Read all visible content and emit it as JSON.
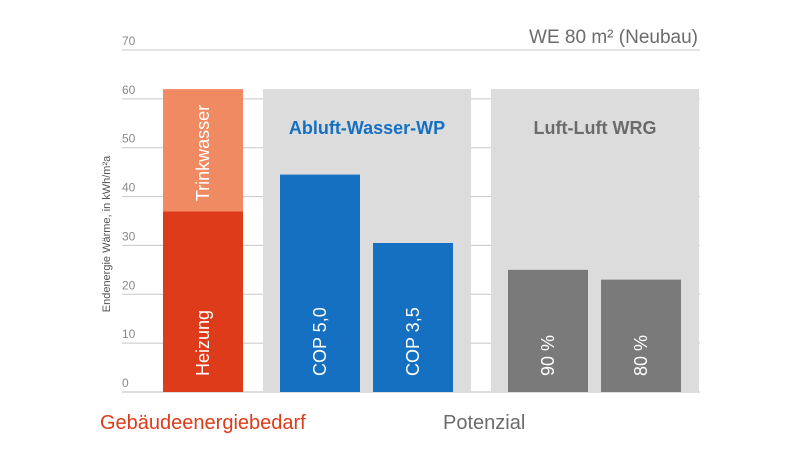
{
  "chart_data": {
    "type": "bar",
    "title": "WE 80 m² (Neubau)",
    "ylabel": "Endenergie Wärme, in kWh/m²a",
    "xlabel": "",
    "ylim": [
      0,
      70
    ],
    "yticks": [
      0,
      10,
      20,
      30,
      40,
      50,
      60,
      70
    ],
    "grid": true,
    "stacked_bar": {
      "segments": [
        {
          "name": "Heizung",
          "value": 37,
          "color": "#dd3b1a"
        },
        {
          "name": "Trinkwasser",
          "value": 25,
          "color": "#f08a62"
        }
      ]
    },
    "groups": [
      {
        "name": "Abluft-Wasser-WP",
        "title_color": "#1570c2",
        "bars": [
          {
            "label": "COP 5,0",
            "value": 44.5,
            "color": "#1570c2"
          },
          {
            "label": "COP 3,5",
            "value": 30.5,
            "color": "#1570c2"
          }
        ]
      },
      {
        "name": "Luft-Luft WRG",
        "title_color": "#6b6b6b",
        "bars": [
          {
            "label": "90 %",
            "value": 25,
            "color": "#7a7a7a"
          },
          {
            "label": "80 %",
            "value": 23,
            "color": "#7a7a7a"
          }
        ]
      }
    ],
    "footer_labels": [
      {
        "text": "Gebäudeenergiebedarf",
        "color": "#dd3b1a"
      },
      {
        "text": "Potenzial",
        "color": "#6b6b6b"
      }
    ],
    "colors": {
      "group_background": "#dcdcdc",
      "grid": "#c8c8c8"
    }
  }
}
